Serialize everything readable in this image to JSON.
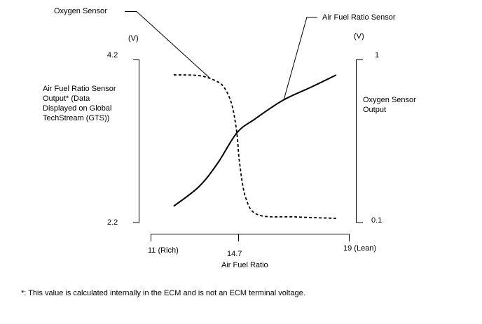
{
  "chart_data": {
    "type": "line",
    "xlabel": "Air Fuel Ratio",
    "x_ticks": [
      "11 (Rich)",
      "14.7",
      "19 (Lean)"
    ],
    "xlim": [
      11,
      19
    ],
    "left_axis": {
      "label": "Air Fuel Ratio Sensor Output* (Data Displayed on Global TechStream (GTS))",
      "label_lines": [
        "Air Fuel Ratio Sensor",
        "Output* (Data",
        "Displayed on Global",
        "TechStream (GTS))"
      ],
      "unit": "(V)",
      "ticks": [
        "4.2",
        "2.2"
      ],
      "ylim": [
        2.2,
        4.2
      ]
    },
    "right_axis": {
      "label_lines": [
        "Oxygen Sensor",
        "Output"
      ],
      "unit": "(V)",
      "ticks": [
        "1",
        "0.1"
      ],
      "ylim": [
        0.1,
        1
      ]
    },
    "series": [
      {
        "name": "Air Fuel Ratio Sensor",
        "axis": "left",
        "style": "solid",
        "x": [
          11.93,
          12.95,
          13.71,
          14.48,
          15.21,
          16.34,
          17.47,
          18.49
        ],
        "y": [
          2.4,
          2.64,
          2.93,
          3.3,
          3.47,
          3.7,
          3.86,
          4.01
        ]
      },
      {
        "name": "Oxygen Sensor",
        "axis": "right",
        "style": "dashed",
        "x": [
          11.93,
          12.95,
          13.6,
          13.97,
          14.28,
          14.48,
          14.59,
          14.84,
          15.35,
          16.85,
          18.49
        ],
        "y": [
          0.915,
          0.911,
          0.884,
          0.845,
          0.749,
          0.594,
          0.428,
          0.235,
          0.142,
          0.131,
          0.123
        ]
      }
    ],
    "footnote": "*: This value is calculated internally in the ECM and is not an ECM terminal voltage."
  }
}
